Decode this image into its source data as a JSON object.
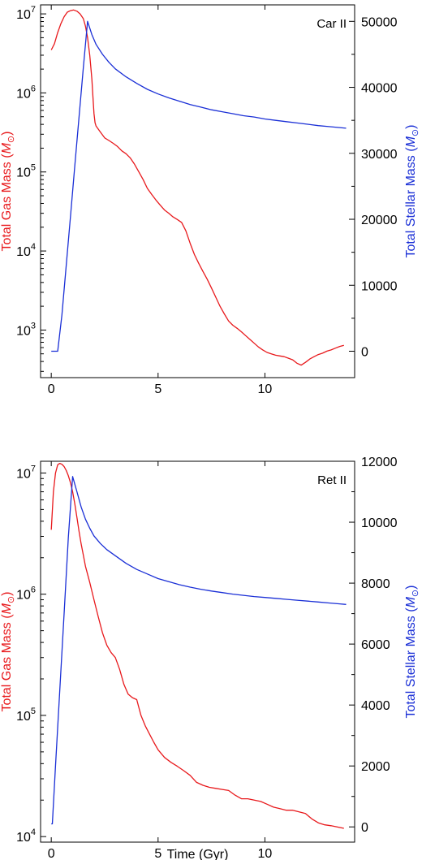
{
  "chart_data": [
    {
      "type": "line",
      "panel_label": "Car II",
      "xlabel": "",
      "xlim": [
        -0.5,
        14.2
      ],
      "xticks": [
        0,
        5,
        10
      ],
      "y_left": {
        "label_prefix": "Total Gas Mass (",
        "label_unit": "M",
        "label_sub": "⊙",
        "label_suffix": ")",
        "scale": "log",
        "range": [
          250,
          13000000
        ],
        "ticks": [
          {
            "base": "10",
            "exp": "3",
            "value": 1000
          },
          {
            "base": "10",
            "exp": "4",
            "value": 10000
          },
          {
            "base": "10",
            "exp": "5",
            "value": 100000
          },
          {
            "base": "10",
            "exp": "6",
            "value": 1000000
          },
          {
            "base": "10",
            "exp": "7",
            "value": 10000000
          }
        ],
        "color": "#e8191c"
      },
      "y_right": {
        "label_prefix": "Total Stellar Mass (",
        "label_unit": "M",
        "label_sub": "⊙",
        "label_suffix": ")",
        "scale": "linear",
        "range": [
          -4000,
          52500
        ],
        "ticks": [
          0,
          10000,
          20000,
          30000,
          40000,
          50000
        ],
        "tick_labels": [
          "0",
          "10000",
          "20000",
          "30000",
          "40000",
          "50000"
        ],
        "color": "#1a2fd6"
      },
      "series": [
        {
          "axis": "left",
          "color": "#e8191c",
          "x": [
            0,
            0.15,
            0.3,
            0.45,
            0.6,
            0.75,
            0.9,
            1.05,
            1.2,
            1.35,
            1.5,
            1.6,
            1.7,
            1.8,
            1.9,
            1.95,
            2.0,
            2.05,
            2.1,
            2.3,
            2.5,
            2.7,
            2.9,
            3.1,
            3.3,
            3.5,
            3.7,
            3.9,
            4.1,
            4.3,
            4.5,
            4.7,
            4.9,
            5.1,
            5.3,
            5.5,
            5.7,
            5.9,
            6.1,
            6.3,
            6.5,
            6.7,
            6.9,
            7.1,
            7.3,
            7.5,
            7.7,
            7.9,
            8.1,
            8.3,
            8.5,
            8.7,
            8.9,
            9.1,
            9.3,
            9.5,
            9.7,
            9.9,
            10.1,
            10.3,
            10.5,
            10.7,
            10.9,
            11.1,
            11.3,
            11.5,
            11.7,
            11.9,
            12.1,
            12.3,
            12.5,
            12.7,
            12.9,
            13.1,
            13.3,
            13.5,
            13.7
          ],
          "y": [
            3500000,
            4200000,
            5800000,
            7500000,
            9200000,
            10500000,
            11000000,
            11200000,
            10800000,
            10000000,
            8700000,
            7000000,
            5000000,
            3000000,
            1500000,
            900000,
            550000,
            420000,
            380000,
            320000,
            270000,
            250000,
            230000,
            210000,
            185000,
            170000,
            150000,
            125000,
            100000,
            80000,
            62000,
            52000,
            44000,
            38000,
            33000,
            30000,
            27000,
            25000,
            23000,
            18000,
            12500,
            9000,
            7000,
            5500,
            4400,
            3400,
            2600,
            2000,
            1600,
            1300,
            1150,
            1050,
            950,
            850,
            760,
            680,
            610,
            560,
            520,
            500,
            480,
            470,
            460,
            440,
            420,
            380,
            360,
            390,
            430,
            460,
            490,
            510,
            540,
            560,
            590,
            620,
            640
          ]
        },
        {
          "axis": "right",
          "color": "#1a2fd6",
          "x": [
            0,
            0.15,
            0.3,
            0.5,
            0.7,
            0.9,
            1.1,
            1.3,
            1.5,
            1.6,
            1.7,
            1.9,
            2.1,
            2.4,
            2.7,
            3.0,
            3.5,
            4.0,
            4.5,
            5.0,
            5.5,
            6.0,
            6.5,
            7.0,
            7.5,
            8.0,
            8.5,
            9.0,
            9.5,
            10.0,
            10.5,
            11.0,
            11.5,
            12.0,
            12.5,
            13.0,
            13.5,
            13.8
          ],
          "y": [
            0,
            0,
            0,
            5500,
            13000,
            20500,
            28000,
            35500,
            43000,
            46500,
            50000,
            48000,
            46500,
            45000,
            43800,
            42800,
            41600,
            40600,
            39700,
            39000,
            38400,
            37900,
            37400,
            37000,
            36600,
            36300,
            36000,
            35700,
            35500,
            35200,
            35000,
            34800,
            34600,
            34400,
            34200,
            34050,
            33900,
            33800
          ]
        }
      ]
    },
    {
      "type": "line",
      "panel_label": "Ret II",
      "xlabel": "Time (Gyr)",
      "xlim": [
        -0.5,
        14.2
      ],
      "xticks": [
        0,
        5,
        10
      ],
      "y_left": {
        "label_prefix": "Total Gas Mass (",
        "label_unit": "M",
        "label_sub": "⊙",
        "label_suffix": ")",
        "scale": "log",
        "range": [
          9000,
          12500000
        ],
        "ticks": [
          {
            "base": "10",
            "exp": "4",
            "value": 10000
          },
          {
            "base": "10",
            "exp": "5",
            "value": 100000
          },
          {
            "base": "10",
            "exp": "6",
            "value": 1000000
          },
          {
            "base": "10",
            "exp": "7",
            "value": 10000000
          }
        ],
        "color": "#e8191c"
      },
      "y_right": {
        "label_prefix": "Total Stellar Mass (",
        "label_unit": "M",
        "label_sub": "⊙",
        "label_suffix": ")",
        "scale": "linear",
        "range": [
          -500,
          12000
        ],
        "ticks": [
          0,
          2000,
          4000,
          6000,
          8000,
          10000,
          12000
        ],
        "tick_labels": [
          "0",
          "2000",
          "4000",
          "6000",
          "8000",
          "10000",
          "12000"
        ],
        "color": "#1a2fd6"
      },
      "series": [
        {
          "axis": "left",
          "color": "#e8191c",
          "x": [
            0,
            0.1,
            0.2,
            0.3,
            0.4,
            0.5,
            0.6,
            0.7,
            0.8,
            0.9,
            1.0,
            1.1,
            1.2,
            1.3,
            1.4,
            1.5,
            1.6,
            1.8,
            2.0,
            2.2,
            2.4,
            2.6,
            2.8,
            3.0,
            3.2,
            3.4,
            3.6,
            3.8,
            4.0,
            4.2,
            4.4,
            4.6,
            4.8,
            5.0,
            5.3,
            5.6,
            5.9,
            6.2,
            6.5,
            6.8,
            7.1,
            7.4,
            7.7,
            8.0,
            8.3,
            8.6,
            8.9,
            9.2,
            9.5,
            9.8,
            10.1,
            10.4,
            10.7,
            11.0,
            11.3,
            11.6,
            11.9,
            12.2,
            12.5,
            12.8,
            13.1,
            13.4,
            13.7
          ],
          "y": [
            3400000,
            7000000,
            10000000,
            11700000,
            12000000,
            11800000,
            11300000,
            10500000,
            9500000,
            8300000,
            7000000,
            5600000,
            4300000,
            3300000,
            2600000,
            2100000,
            1700000,
            1250000,
            900000,
            650000,
            480000,
            380000,
            330000,
            300000,
            240000,
            180000,
            150000,
            140000,
            135000,
            100000,
            82000,
            70000,
            60000,
            52000,
            45000,
            41000,
            38000,
            35000,
            32000,
            28000,
            26500,
            25500,
            25000,
            24500,
            24000,
            22000,
            20500,
            20500,
            20000,
            19500,
            18500,
            17500,
            17000,
            16500,
            16500,
            16000,
            15500,
            14000,
            13000,
            12500,
            12300,
            12000,
            11700
          ]
        },
        {
          "axis": "right",
          "color": "#1a2fd6",
          "x": [
            0,
            0.05,
            0.2,
            0.4,
            0.6,
            0.8,
            1.0,
            1.2,
            1.4,
            1.6,
            1.8,
            2.0,
            2.3,
            2.6,
            3.0,
            3.5,
            4.0,
            4.5,
            5.0,
            5.5,
            6.0,
            6.5,
            7.0,
            7.5,
            8.0,
            8.5,
            9.0,
            9.5,
            10.0,
            10.5,
            11.0,
            11.5,
            12.0,
            12.5,
            13.0,
            13.5,
            13.8
          ],
          "y": [
            100,
            100,
            2000,
            4500,
            7000,
            9500,
            11500,
            11000,
            10500,
            10100,
            9800,
            9550,
            9300,
            9100,
            8900,
            8650,
            8450,
            8300,
            8150,
            8050,
            7950,
            7870,
            7800,
            7740,
            7690,
            7640,
            7600,
            7560,
            7530,
            7500,
            7470,
            7440,
            7410,
            7380,
            7350,
            7320,
            7300
          ]
        }
      ]
    }
  ]
}
